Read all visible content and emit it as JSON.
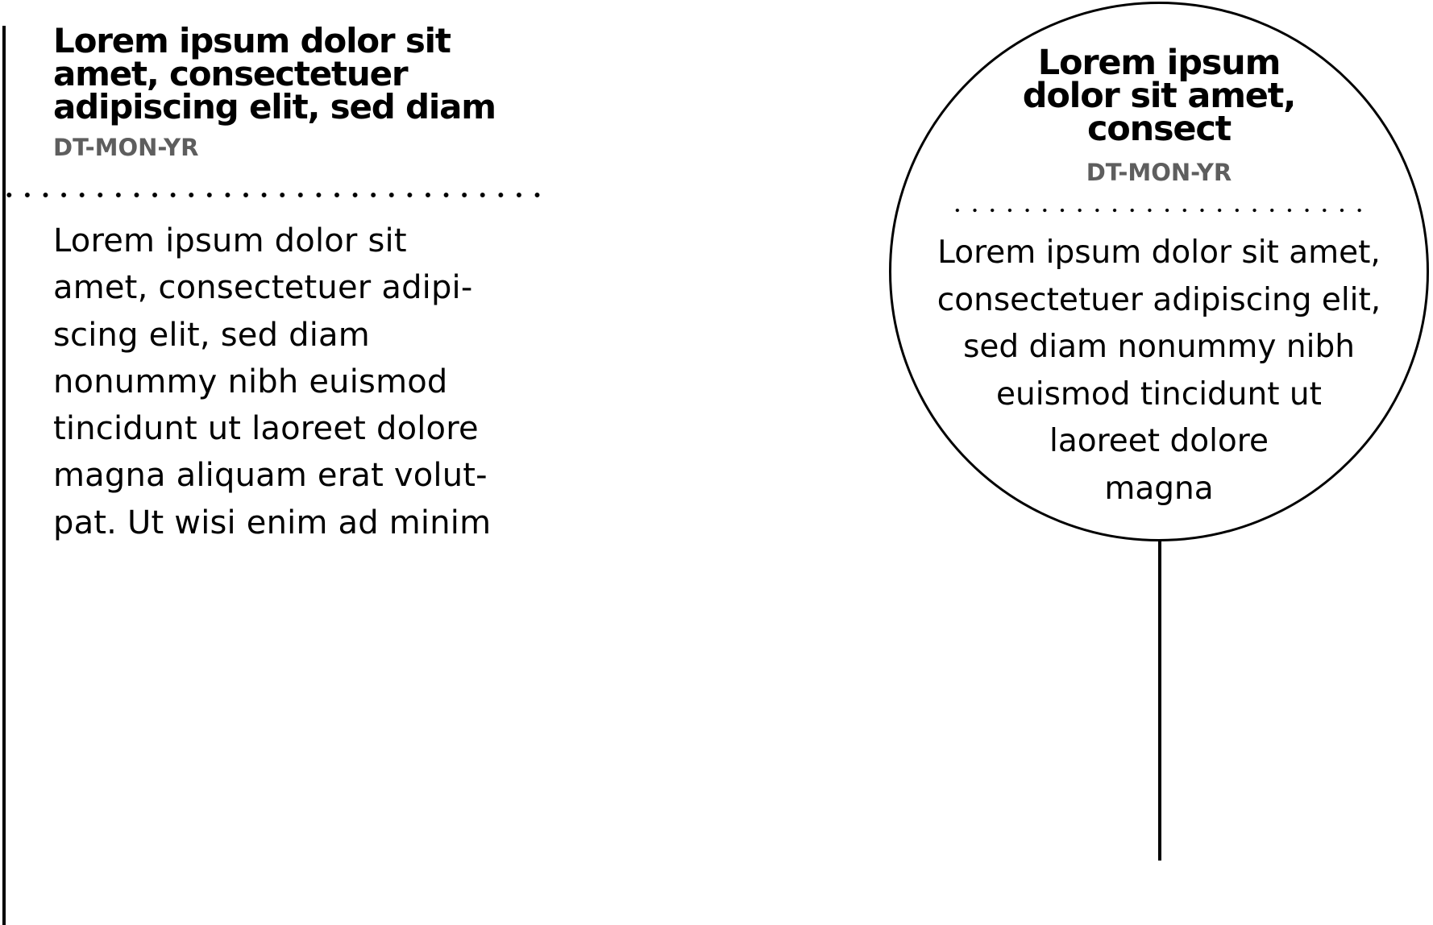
{
  "left_card": {
    "title": "Lorem ipsum dolor sit\namet, consectetuer\nadipiscing elit, sed diam",
    "date": "DT-MON-YR",
    "body": "Lorem ipsum dolor sit\namet, consectetuer adipi-\nscing elit, sed diam\nnonummy nibh euismod\ntincidunt ut laoreet dolore\nmagna aliquam erat volut-\npat. Ut wisi enim ad minim"
  },
  "circle_card": {
    "title": "Lorem ipsum\ndolor sit amet,\nconsect",
    "date": "DT-MON-YR",
    "body": "Lorem ipsum dolor sit amet,\nconsectetuer adipiscing elit,\nsed diam nonummy nibh\neuismod tincidunt ut\nlaoreet dolore\nmagna"
  }
}
